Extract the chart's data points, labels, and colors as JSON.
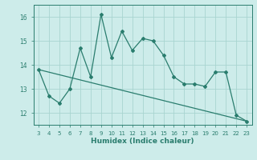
{
  "x": [
    3,
    4,
    5,
    6,
    7,
    8,
    9,
    10,
    11,
    12,
    13,
    14,
    15,
    16,
    17,
    18,
    19,
    20,
    21,
    22,
    23
  ],
  "y": [
    13.8,
    12.7,
    12.4,
    13.0,
    14.7,
    13.5,
    16.1,
    14.3,
    15.4,
    14.6,
    15.1,
    15.0,
    14.4,
    13.5,
    13.2,
    13.2,
    13.1,
    13.7,
    13.7,
    11.9,
    11.65
  ],
  "trend_x": [
    3,
    23
  ],
  "trend_y": [
    13.8,
    11.65
  ],
  "line_color": "#2a7d6e",
  "bg_color": "#cdecea",
  "grid_color": "#a8d5d0",
  "xlabel": "Humidex (Indice chaleur)",
  "ylim": [
    11.5,
    16.5
  ],
  "xlim": [
    2.5,
    23.5
  ],
  "yticks": [
    12,
    13,
    14,
    15,
    16
  ],
  "xticks": [
    3,
    4,
    5,
    6,
    7,
    8,
    9,
    10,
    11,
    12,
    13,
    14,
    15,
    16,
    17,
    18,
    19,
    20,
    21,
    22,
    23
  ]
}
